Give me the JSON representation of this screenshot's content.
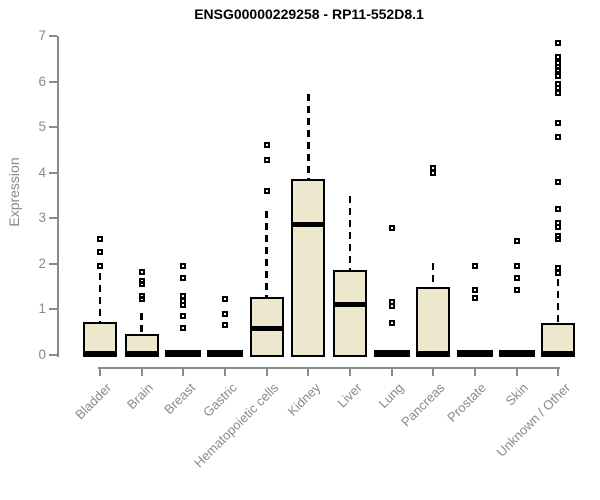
{
  "chart_data": {
    "type": "boxplot",
    "title": "ENSG00000229258 - RP11-552D8.1",
    "xlabel": "",
    "ylabel": "Expression",
    "ylim": [
      0,
      7
    ],
    "yticks": [
      "0",
      "1",
      "2",
      "3",
      "4",
      "5",
      "6",
      "7"
    ],
    "grid": false,
    "legend": false,
    "categories": [
      "Bladder",
      "Brain",
      "Breast",
      "Gastric",
      "Hematopoietic cells",
      "Kidney",
      "Liver",
      "Lung",
      "Pancreas",
      "Prostate",
      "Skin",
      "Unknown / Other"
    ],
    "series": [
      {
        "label": "Bladder",
        "flat": false,
        "q1": 0,
        "median": 0.04,
        "q3": 0.72,
        "whisker_high": 1.8,
        "outliers": [
          1.95,
          2.25,
          2.55
        ]
      },
      {
        "label": "Brain",
        "flat": false,
        "q1": 0,
        "median": 0.04,
        "q3": 0.47,
        "whisker_high": 0.93,
        "outliers": [
          1.22,
          1.3,
          1.55,
          1.63,
          1.83
        ]
      },
      {
        "label": "Breast",
        "flat": true,
        "q1": 0,
        "median": 0.02,
        "q3": 0.04,
        "whisker_high": null,
        "outliers": [
          0.6,
          0.86,
          1.1,
          1.18,
          1.3,
          1.68,
          1.95
        ]
      },
      {
        "label": "Gastric",
        "flat": true,
        "q1": 0,
        "median": 0.02,
        "q3": 0.04,
        "whisker_high": null,
        "outliers": [
          0.65,
          0.9,
          1.22
        ]
      },
      {
        "label": "Hematopoietic cells",
        "flat": false,
        "q1": 0,
        "median": 0.58,
        "q3": 1.28,
        "whisker_high": 3.17,
        "outliers": [
          3.6,
          4.28,
          4.6
        ]
      },
      {
        "label": "Kidney",
        "flat": false,
        "q1": 0,
        "median": 2.87,
        "q3": 3.87,
        "whisker_high": 5.72,
        "outliers": []
      },
      {
        "label": "Liver",
        "flat": false,
        "q1": 0,
        "median": 1.1,
        "q3": 1.86,
        "whisker_high": 3.5,
        "outliers": []
      },
      {
        "label": "Lung",
        "flat": true,
        "q1": 0,
        "median": 0.02,
        "q3": 0.04,
        "whisker_high": null,
        "outliers": [
          0.7,
          1.08,
          1.16,
          2.78
        ]
      },
      {
        "label": "Pancreas",
        "flat": false,
        "q1": 0,
        "median": 0.04,
        "q3": 1.5,
        "whisker_high": 2.02,
        "outliers": [
          4.0,
          4.1
        ]
      },
      {
        "label": "Prostate",
        "flat": true,
        "q1": 0,
        "median": 0.02,
        "q3": 0.04,
        "whisker_high": null,
        "outliers": [
          1.25,
          1.42,
          1.95
        ]
      },
      {
        "label": "Skin",
        "flat": true,
        "q1": 0,
        "median": 0.02,
        "q3": 0.04,
        "whisker_high": null,
        "outliers": [
          1.42,
          1.68,
          1.95,
          2.5
        ]
      },
      {
        "label": "Unknown / Other",
        "flat": false,
        "q1": 0,
        "median": 0.04,
        "q3": 0.7,
        "whisker_high": 1.67,
        "outliers": [
          1.8,
          1.9,
          2.55,
          2.62,
          2.8,
          2.9,
          3.2,
          3.8,
          4.78,
          5.08,
          5.75,
          5.85,
          5.95,
          6.12,
          6.25,
          6.33,
          6.4,
          6.55,
          6.85
        ]
      }
    ]
  },
  "colors": {
    "box_fill": "#ece7cd",
    "box_border": "#000000",
    "axis": "#8a8a8a",
    "label_text": "#8a8a8a",
    "title_text": "#000000"
  }
}
